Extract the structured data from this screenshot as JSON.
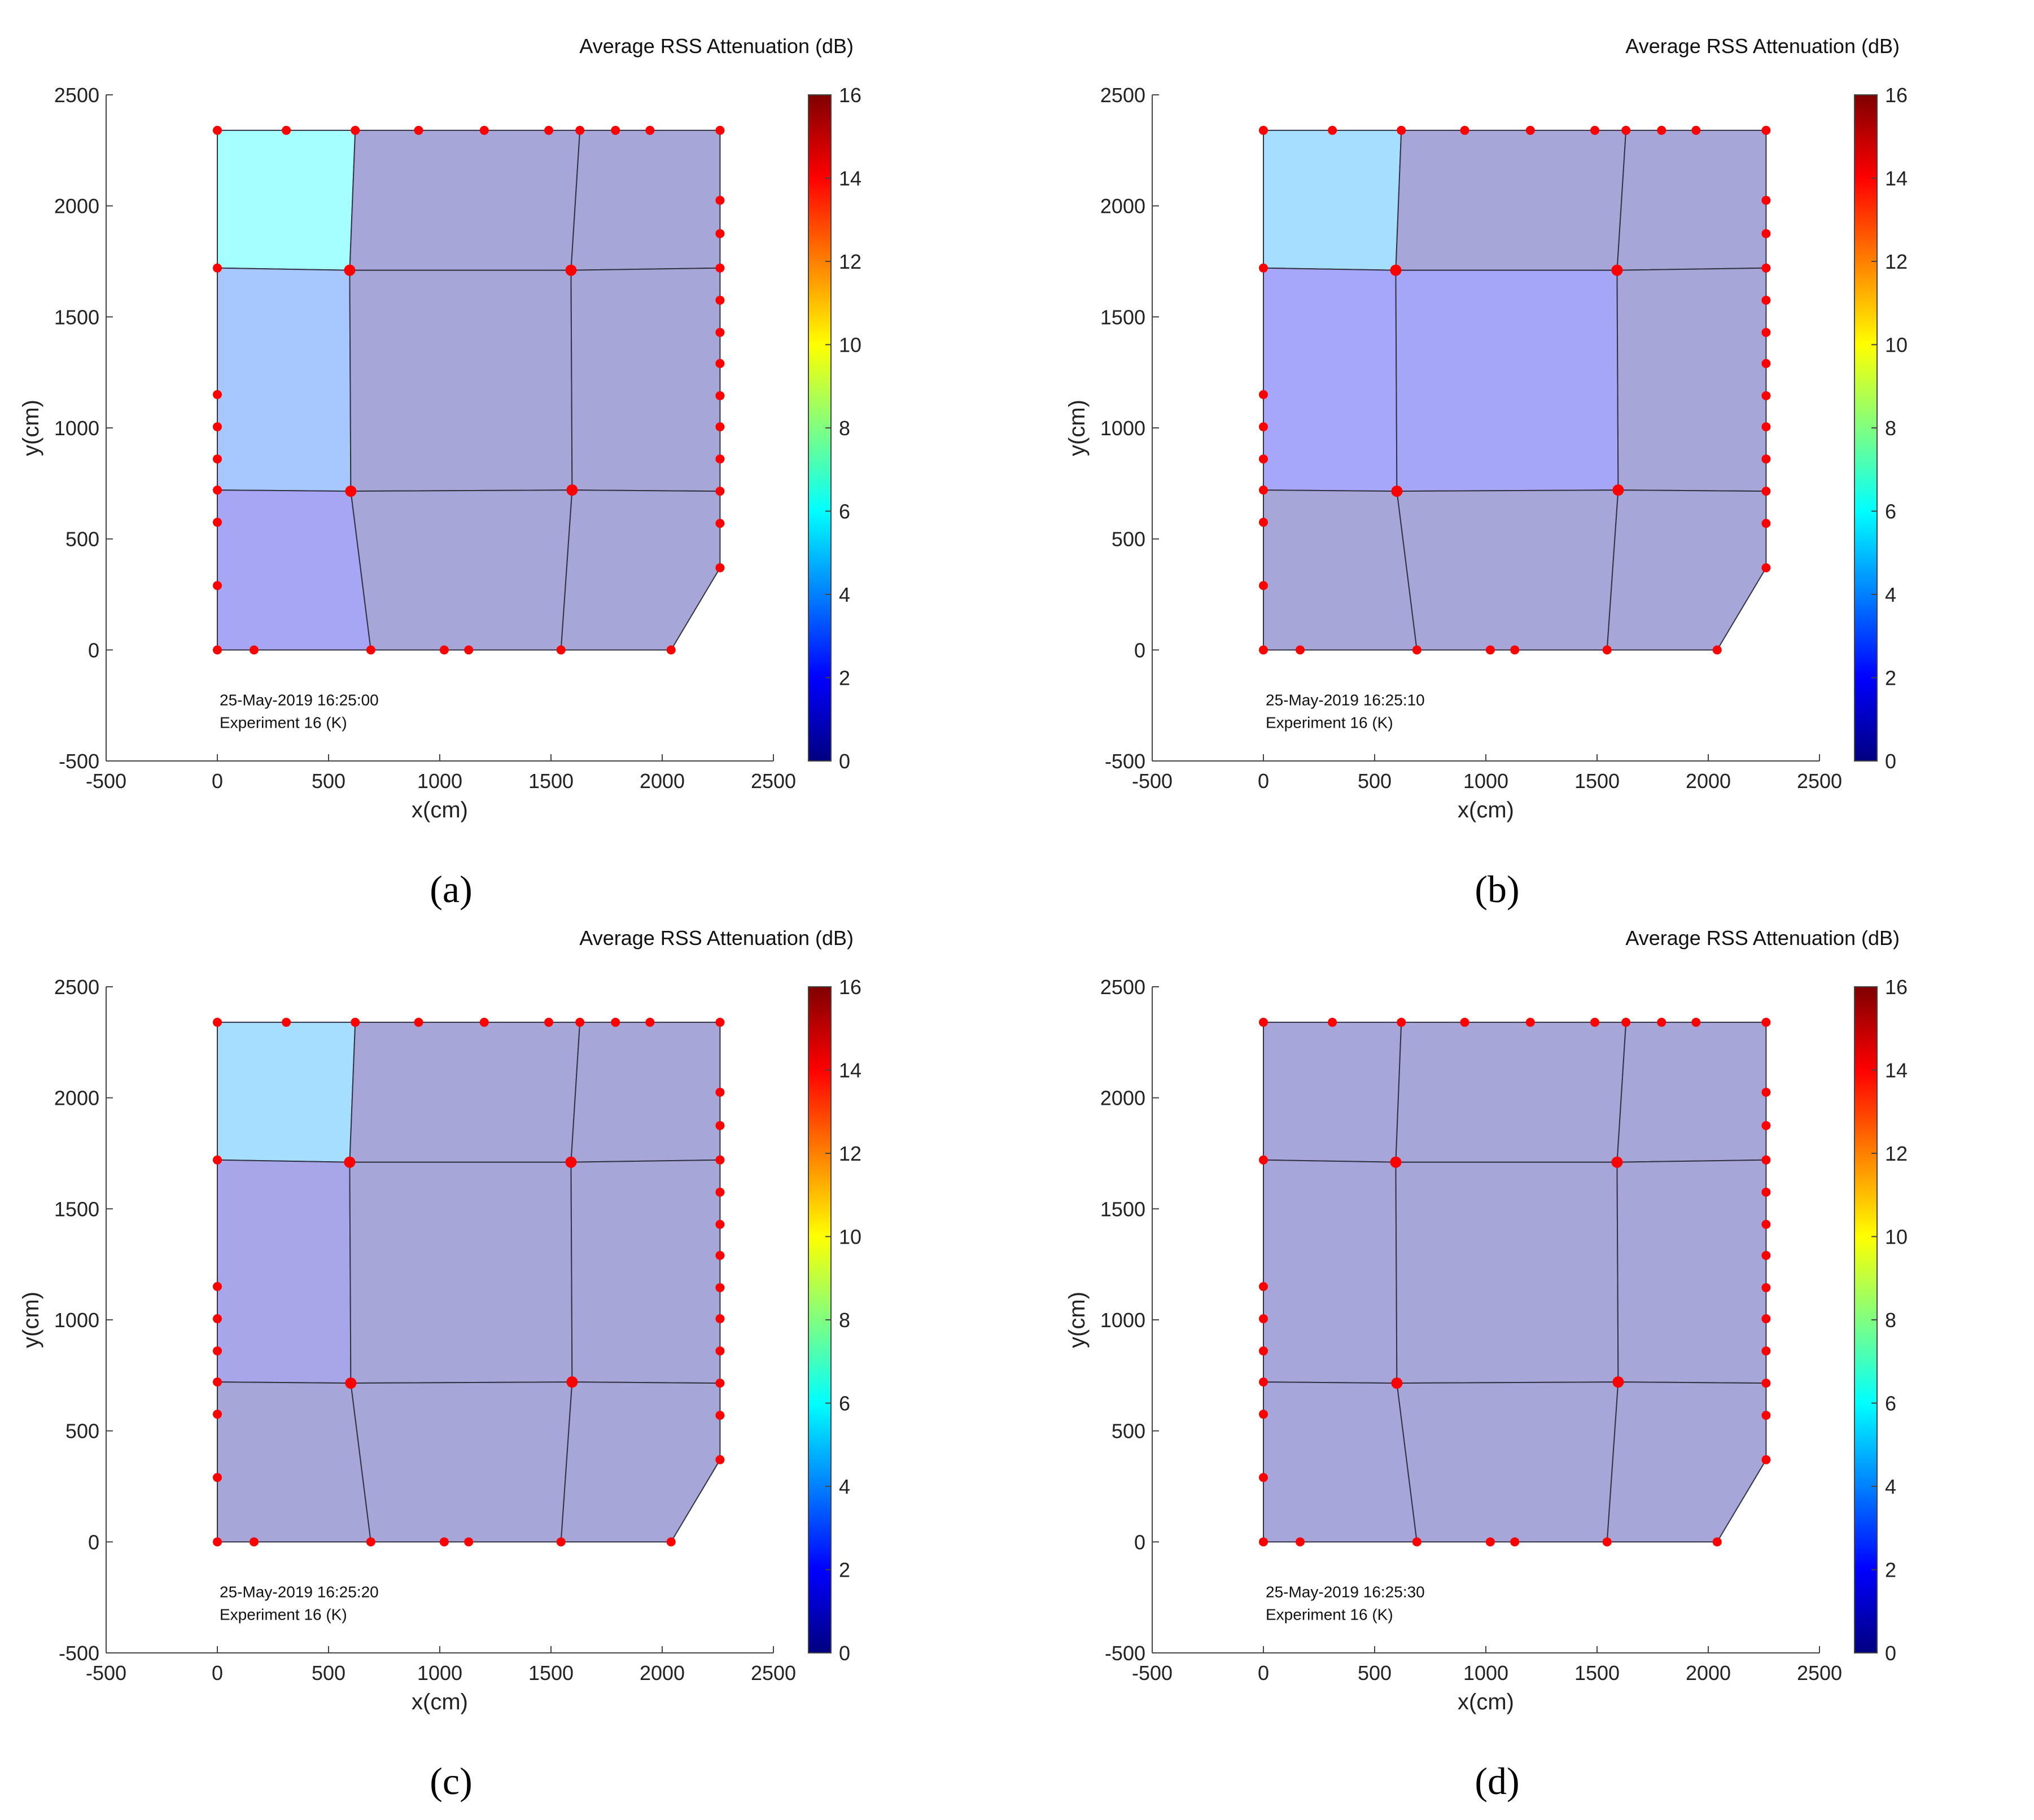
{
  "chart_data": [
    {
      "type": "heatmap",
      "panel_label": "(a)",
      "colorbar_title": "Average RSS Attenuation (dB)",
      "xlabel": "x(cm)",
      "ylabel": "y(cm)",
      "xlim": [
        -500,
        2500
      ],
      "ylim": [
        -500,
        2500
      ],
      "xticks": [
        -500,
        0,
        500,
        1000,
        1500,
        2000,
        2500
      ],
      "yticks": [
        -500,
        0,
        500,
        1000,
        1500,
        2000,
        2500
      ],
      "clim": [
        0,
        16
      ],
      "cticks": [
        0,
        2,
        4,
        6,
        8,
        10,
        12,
        14,
        16
      ],
      "annotation": [
        "25-May-2019 16:25:00",
        "Experiment 16 (K)"
      ],
      "cell_values": [
        6.0,
        3.5,
        1.5,
        0.3,
        0.3,
        0.3,
        0.3,
        0.3,
        0.3
      ]
    },
    {
      "type": "heatmap",
      "panel_label": "(b)",
      "colorbar_title": "Average RSS Attenuation (dB)",
      "xlabel": "x(cm)",
      "ylabel": "y(cm)",
      "xlim": [
        -500,
        2500
      ],
      "ylim": [
        -500,
        2500
      ],
      "xticks": [
        -500,
        0,
        500,
        1000,
        1500,
        2000,
        2500
      ],
      "yticks": [
        -500,
        0,
        500,
        1000,
        1500,
        2000,
        2500
      ],
      "clim": [
        0,
        16
      ],
      "cticks": [
        0,
        2,
        4,
        6,
        8,
        10,
        12,
        14,
        16
      ],
      "annotation": [
        "25-May-2019 16:25:10",
        "Experiment 16 (K)"
      ],
      "cell_values": [
        4.5,
        1.8,
        0.3,
        0.3,
        1.6,
        0.3,
        0.3,
        0.3,
        0.3
      ]
    },
    {
      "type": "heatmap",
      "panel_label": "(c)",
      "colorbar_title": "Average RSS Attenuation (dB)",
      "xlabel": "x(cm)",
      "ylabel": "y(cm)",
      "xlim": [
        -500,
        2500
      ],
      "ylim": [
        -500,
        2500
      ],
      "xticks": [
        -500,
        0,
        500,
        1000,
        1500,
        2000,
        2500
      ],
      "yticks": [
        -500,
        0,
        500,
        1000,
        1500,
        2000,
        2500
      ],
      "clim": [
        0,
        16
      ],
      "cticks": [
        0,
        2,
        4,
        6,
        8,
        10,
        12,
        14,
        16
      ],
      "annotation": [
        "25-May-2019 16:25:20",
        "Experiment 16 (K)"
      ],
      "cell_values": [
        4.5,
        1.0,
        0.3,
        0.3,
        0.3,
        0.3,
        0.3,
        0.3,
        0.3
      ]
    },
    {
      "type": "heatmap",
      "panel_label": "(d)",
      "colorbar_title": "Average RSS Attenuation (dB)",
      "xlabel": "x(cm)",
      "ylabel": "y(cm)",
      "xlim": [
        -500,
        2500
      ],
      "ylim": [
        -500,
        2500
      ],
      "xticks": [
        -500,
        0,
        500,
        1000,
        1500,
        2000,
        2500
      ],
      "yticks": [
        -500,
        0,
        500,
        1000,
        1500,
        2000,
        2500
      ],
      "clim": [
        0,
        16
      ],
      "cticks": [
        0,
        2,
        4,
        6,
        8,
        10,
        12,
        14,
        16
      ],
      "annotation": [
        "25-May-2019 16:25:30",
        "Experiment 16 (K)"
      ],
      "cell_values": [
        0.4,
        0.4,
        0.4,
        0.3,
        0.3,
        0.3,
        0.3,
        0.3,
        0.3
      ]
    }
  ],
  "regions": [
    [
      [
        0,
        2340
      ],
      [
        620,
        2340
      ],
      [
        595,
        1710
      ],
      [
        0,
        1720
      ]
    ],
    [
      [
        0,
        1720
      ],
      [
        595,
        1710
      ],
      [
        600,
        715
      ],
      [
        0,
        720
      ]
    ],
    [
      [
        0,
        720
      ],
      [
        600,
        715
      ],
      [
        690,
        0
      ],
      [
        0,
        0
      ]
    ],
    [
      [
        620,
        2340
      ],
      [
        1630,
        2340
      ],
      [
        1590,
        1710
      ],
      [
        595,
        1710
      ]
    ],
    [
      [
        595,
        1710
      ],
      [
        1590,
        1710
      ],
      [
        1595,
        720
      ],
      [
        600,
        715
      ]
    ],
    [
      [
        600,
        715
      ],
      [
        1595,
        720
      ],
      [
        1545,
        0
      ],
      [
        690,
        0
      ]
    ],
    [
      [
        1630,
        2340
      ],
      [
        2260,
        2340
      ],
      [
        2260,
        1720
      ],
      [
        1590,
        1710
      ]
    ],
    [
      [
        1590,
        1710
      ],
      [
        2260,
        1720
      ],
      [
        2260,
        715
      ],
      [
        1595,
        720
      ]
    ],
    [
      [
        1595,
        720
      ],
      [
        2260,
        715
      ],
      [
        2260,
        370
      ],
      [
        2040,
        0
      ],
      [
        1545,
        0
      ]
    ]
  ],
  "sensors": [
    [
      0,
      2340
    ],
    [
      310,
      2340
    ],
    [
      620,
      2340
    ],
    [
      905,
      2340
    ],
    [
      1200,
      2340
    ],
    [
      1490,
      2340
    ],
    [
      1630,
      2340
    ],
    [
      1790,
      2340
    ],
    [
      1945,
      2340
    ],
    [
      2260,
      2340
    ],
    [
      0,
      1720
    ],
    [
      0,
      1150
    ],
    [
      0,
      1005
    ],
    [
      0,
      860
    ],
    [
      0,
      720
    ],
    [
      0,
      575
    ],
    [
      0,
      290
    ],
    [
      0,
      0
    ],
    [
      165,
      0
    ],
    [
      690,
      0
    ],
    [
      1020,
      0
    ],
    [
      1130,
      0
    ],
    [
      1545,
      0
    ],
    [
      2040,
      0
    ],
    [
      2260,
      2025
    ],
    [
      2260,
      1875
    ],
    [
      2260,
      1720
    ],
    [
      2260,
      1575
    ],
    [
      2260,
      1430
    ],
    [
      2260,
      1290
    ],
    [
      2260,
      1145
    ],
    [
      2260,
      1005
    ],
    [
      2260,
      860
    ],
    [
      2260,
      715
    ],
    [
      2260,
      570
    ],
    [
      2260,
      370
    ],
    [
      595,
      1710
    ],
    [
      1590,
      1710
    ],
    [
      600,
      715
    ],
    [
      1595,
      720
    ]
  ],
  "colors": {
    "sensor": "#ff0000",
    "cell_edge": "#333344",
    "axis": "#444444"
  }
}
